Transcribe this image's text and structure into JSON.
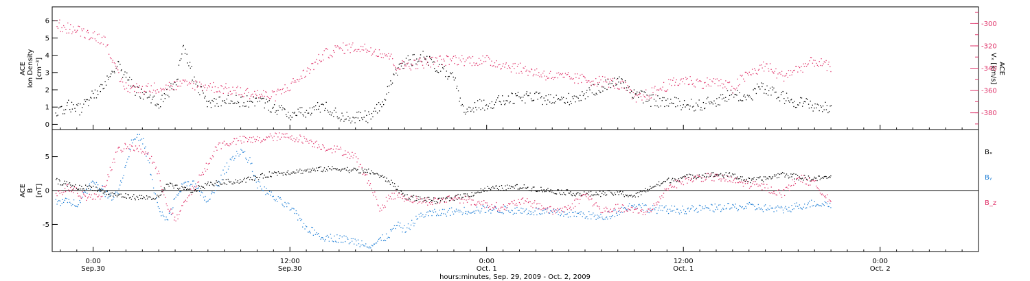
{
  "time_axis": {
    "caption": "hours:minutes, Sep. 29, 2009 - Oct. 2, 2009",
    "range_hours": [
      -2.5,
      54
    ],
    "ticks": [
      {
        "hours": 0,
        "time": "0:00",
        "date": "Sep.30"
      },
      {
        "hours": 12,
        "time": "12:00",
        "date": "Sep.30"
      },
      {
        "hours": 24,
        "time": "0:00",
        "date": "Oct. 1"
      },
      {
        "hours": 36,
        "time": "12:00",
        "date": "Oct. 1"
      },
      {
        "hours": 48,
        "time": "0:00",
        "date": "Oct. 2"
      }
    ]
  },
  "panels": {
    "density": {
      "label_line1": "ACE",
      "label_line2": "Ion Density",
      "unit": "[cm⁻³]",
      "right_label_line1": "ACE",
      "right_label_line2": "Vₓ [km/s]"
    },
    "field": {
      "label_line1": "ACE",
      "label_line2": "B",
      "unit": "[nT]",
      "legend": [
        {
          "text": "Bₓ",
          "color": "#000000"
        },
        {
          "text": "Bᵧ",
          "color": "#1f7fd6"
        },
        {
          "text": "B_z",
          "color": "#e0336a"
        }
      ]
    }
  },
  "colors": {
    "black": "#000000",
    "red": "#e0336a",
    "blue": "#1f7fd6",
    "axis_red": "#e0336a"
  },
  "chart_data": [
    {
      "type": "scatter",
      "panel": "density",
      "xlabel": "hours:minutes, Sep. 29, 2009 - Oct. 2, 2009",
      "ylim": [
        -0.3,
        6.8
      ],
      "yticks": [
        0,
        1,
        2,
        3,
        4,
        5,
        6
      ],
      "y2lim": [
        -395,
        -285
      ],
      "y2ticks": [
        -300,
        -320,
        -340,
        -360,
        -380
      ],
      "grid": false,
      "series": [
        {
          "name": "Ion Density",
          "axis": "left",
          "color": "#000000",
          "noise": 0.35,
          "x": [
            -2.3,
            -1.5,
            -0.8,
            0,
            0.6,
            1.0,
            1.4,
            1.8,
            2.2,
            2.6,
            3.0,
            3.5,
            4.0,
            4.5,
            5.0,
            5.5,
            6.0,
            6.5,
            7.0,
            8.0,
            9.0,
            10.0,
            11.0,
            12.0,
            13.0,
            14.0,
            15.0,
            16.0,
            17.0,
            17.5,
            18.0,
            18.5,
            19.0,
            20.0,
            21.0,
            22.0,
            22.5,
            23.5,
            24.5,
            25.5,
            26.5,
            27.5,
            28.5,
            29.5,
            30.5,
            31.5,
            32.0,
            33.0,
            33.5,
            34.0,
            35.0,
            36.0,
            37.0,
            38.0,
            39.0,
            40.0,
            40.5,
            41.0,
            42.0,
            43.0,
            44.0,
            45.0
          ],
          "y": [
            0.5,
            1.1,
            0.9,
            1.8,
            2.2,
            2.8,
            3.5,
            3.0,
            2.5,
            2.0,
            1.8,
            1.5,
            1.2,
            1.8,
            2.4,
            4.5,
            3.0,
            2.0,
            1.2,
            1.5,
            1.3,
            1.4,
            1.0,
            0.6,
            0.7,
            1.1,
            0.5,
            0.4,
            0.5,
            1.2,
            2.0,
            3.2,
            3.6,
            4.0,
            3.3,
            2.6,
            0.8,
            1.1,
            1.3,
            1.5,
            1.6,
            1.5,
            1.4,
            1.6,
            2.0,
            2.4,
            2.6,
            1.8,
            1.6,
            1.4,
            1.3,
            1.2,
            1.1,
            1.4,
            1.8,
            1.5,
            2.2,
            2.0,
            1.6,
            1.3,
            1.1,
            0.9
          ]
        },
        {
          "name": "Vx",
          "axis": "right",
          "color": "#e0336a",
          "noise": 5,
          "x": [
            -2.3,
            -2.0,
            -1.0,
            0,
            0.8,
            1.0,
            1.3,
            1.6,
            2.0,
            3.0,
            4.0,
            5.0,
            6.0,
            7.0,
            8.0,
            9.0,
            10.0,
            11.0,
            12.0,
            13.0,
            14.0,
            15.0,
            16.0,
            17.0,
            18.0,
            18.5,
            19.5,
            20.5,
            22.0,
            24.0,
            26.0,
            28.0,
            30.0,
            31.5,
            32.5,
            33.0,
            34.0,
            35.0,
            36.0,
            37.0,
            38.0,
            39.0,
            39.5,
            40.0,
            41.0,
            41.5,
            42.0,
            43.0,
            44.0,
            45.0
          ],
          "y": [
            -298,
            -302,
            -306,
            -310,
            -316,
            -325,
            -340,
            -350,
            -357,
            -358,
            -357,
            -355,
            -354,
            -356,
            -358,
            -361,
            -363,
            -365,
            -355,
            -343,
            -328,
            -322,
            -321,
            -323,
            -328,
            -338,
            -336,
            -334,
            -332,
            -333,
            -340,
            -347,
            -350,
            -352,
            -357,
            -368,
            -362,
            -355,
            -350,
            -353,
            -352,
            -358,
            -350,
            -345,
            -337,
            -343,
            -347,
            -340,
            -333,
            -340
          ]
        }
      ]
    },
    {
      "type": "scatter",
      "panel": "field",
      "xlabel": "hours:minutes, Sep. 29, 2009 - Oct. 2, 2009",
      "ylim": [
        -9,
        9
      ],
      "yticks": [
        -5,
        0,
        5
      ],
      "zero_line": true,
      "grid": false,
      "series": [
        {
          "name": "Bₓ",
          "color": "#000000",
          "noise": 0.4,
          "x": [
            -2.3,
            -1.0,
            0,
            1.0,
            2.0,
            3.0,
            4.0,
            4.5,
            5.0,
            6.0,
            7.0,
            8.0,
            9.0,
            10.0,
            11.0,
            12.0,
            13.0,
            14.0,
            15.0,
            16.0,
            17.0,
            18.0,
            18.5,
            19.0,
            20.0,
            21.0,
            22.0,
            23.0,
            24.0,
            26.0,
            28.0,
            30.0,
            32.0,
            33.0,
            34.0,
            35.0,
            36.0,
            37.0,
            38.0,
            39.0,
            40.0,
            41.0,
            42.0,
            43.0,
            44.0,
            45.0
          ],
          "y": [
            1.5,
            0.5,
            0.5,
            -0.5,
            -0.8,
            -1.0,
            -1.0,
            1.0,
            0.5,
            0.0,
            1.0,
            1.3,
            1.5,
            2.0,
            2.6,
            2.8,
            3.0,
            3.2,
            3.3,
            3.0,
            2.8,
            1.5,
            0.5,
            -0.8,
            -1.2,
            -1.5,
            -1.0,
            -0.5,
            0.3,
            0.6,
            0.0,
            -0.5,
            -0.3,
            -0.8,
            0.5,
            1.5,
            2.0,
            2.3,
            2.4,
            2.3,
            1.5,
            1.8,
            2.5,
            2.0,
            1.8,
            2.0
          ]
        },
        {
          "name": "Bᵧ",
          "color": "#1f7fd6",
          "noise": 0.6,
          "x": [
            -2.3,
            -1.0,
            0,
            1.0,
            1.5,
            2.0,
            2.3,
            2.6,
            3.0,
            3.3,
            3.6,
            4.0,
            4.5,
            5.0,
            5.5,
            6.0,
            6.5,
            7.0,
            7.5,
            8.0,
            8.5,
            9.0,
            9.5,
            10.0,
            11.0,
            12.0,
            13.0,
            14.0,
            15.0,
            16.0,
            17.0,
            18.0,
            18.5,
            19.0,
            20.0,
            22.0,
            24.0,
            26.0,
            28.0,
            30.0,
            31.0,
            32.0,
            33.0,
            34.0,
            36.0,
            38.0,
            40.0,
            42.0,
            43.0,
            44.0,
            45.0
          ],
          "y": [
            -1.5,
            -1.8,
            1.5,
            -1.0,
            0.0,
            4.0,
            7.0,
            8.0,
            7.5,
            5.0,
            1.0,
            -3.0,
            -4.5,
            -1.0,
            1.0,
            1.5,
            -0.5,
            -1.5,
            0.5,
            3.0,
            5.0,
            6.0,
            4.5,
            1.0,
            -1.0,
            -2.5,
            -5.5,
            -6.8,
            -7.0,
            -7.5,
            -8.0,
            -6.5,
            -5.0,
            -5.8,
            -3.5,
            -3.0,
            -2.7,
            -2.9,
            -3.2,
            -3.5,
            -4.0,
            -3.0,
            -2.0,
            -2.7,
            -2.8,
            -2.5,
            -2.3,
            -2.8,
            -2.2,
            -1.8,
            -2.0
          ]
        },
        {
          "name": "B_z",
          "color": "#e0336a",
          "noise": 0.6,
          "x": [
            -2.3,
            -1.5,
            -0.5,
            0,
            0.5,
            1.0,
            1.5,
            2.0,
            3.0,
            3.5,
            4.0,
            4.5,
            5.0,
            5.5,
            6.0,
            6.5,
            7.0,
            7.5,
            8.0,
            9.0,
            10.0,
            11.0,
            12.0,
            13.0,
            14.0,
            15.0,
            16.0,
            16.5,
            17.0,
            17.5,
            18.0,
            18.5,
            19.0,
            20.0,
            21.0,
            22.0,
            23.0,
            24.0,
            25.0,
            26.0,
            27.0,
            28.0,
            29.0,
            30.0,
            31.0,
            32.0,
            33.0,
            34.0,
            35.0,
            36.0,
            37.0,
            38.0,
            39.0,
            40.0,
            41.0,
            42.0,
            43.0,
            44.0,
            45.0
          ],
          "y": [
            -0.5,
            0.5,
            -0.8,
            -1.0,
            -0.5,
            3.0,
            6.0,
            6.5,
            6.0,
            5.0,
            2.0,
            -2.0,
            -4.5,
            -2.0,
            0.0,
            2.0,
            4.0,
            6.5,
            7.0,
            7.5,
            7.5,
            8.0,
            8.0,
            7.5,
            6.5,
            6.0,
            5.0,
            2.5,
            0.5,
            -3.0,
            -1.0,
            -0.5,
            -1.0,
            -1.5,
            -1.5,
            -1.0,
            -1.5,
            -2.0,
            -2.5,
            -1.5,
            -2.0,
            -3.0,
            -2.5,
            -0.5,
            -3.0,
            -2.5,
            -3.0,
            -3.0,
            0.5,
            1.5,
            2.0,
            2.0,
            1.5,
            1.0,
            0.5,
            -0.5,
            2.0,
            1.0,
            -1.5
          ]
        }
      ]
    }
  ]
}
